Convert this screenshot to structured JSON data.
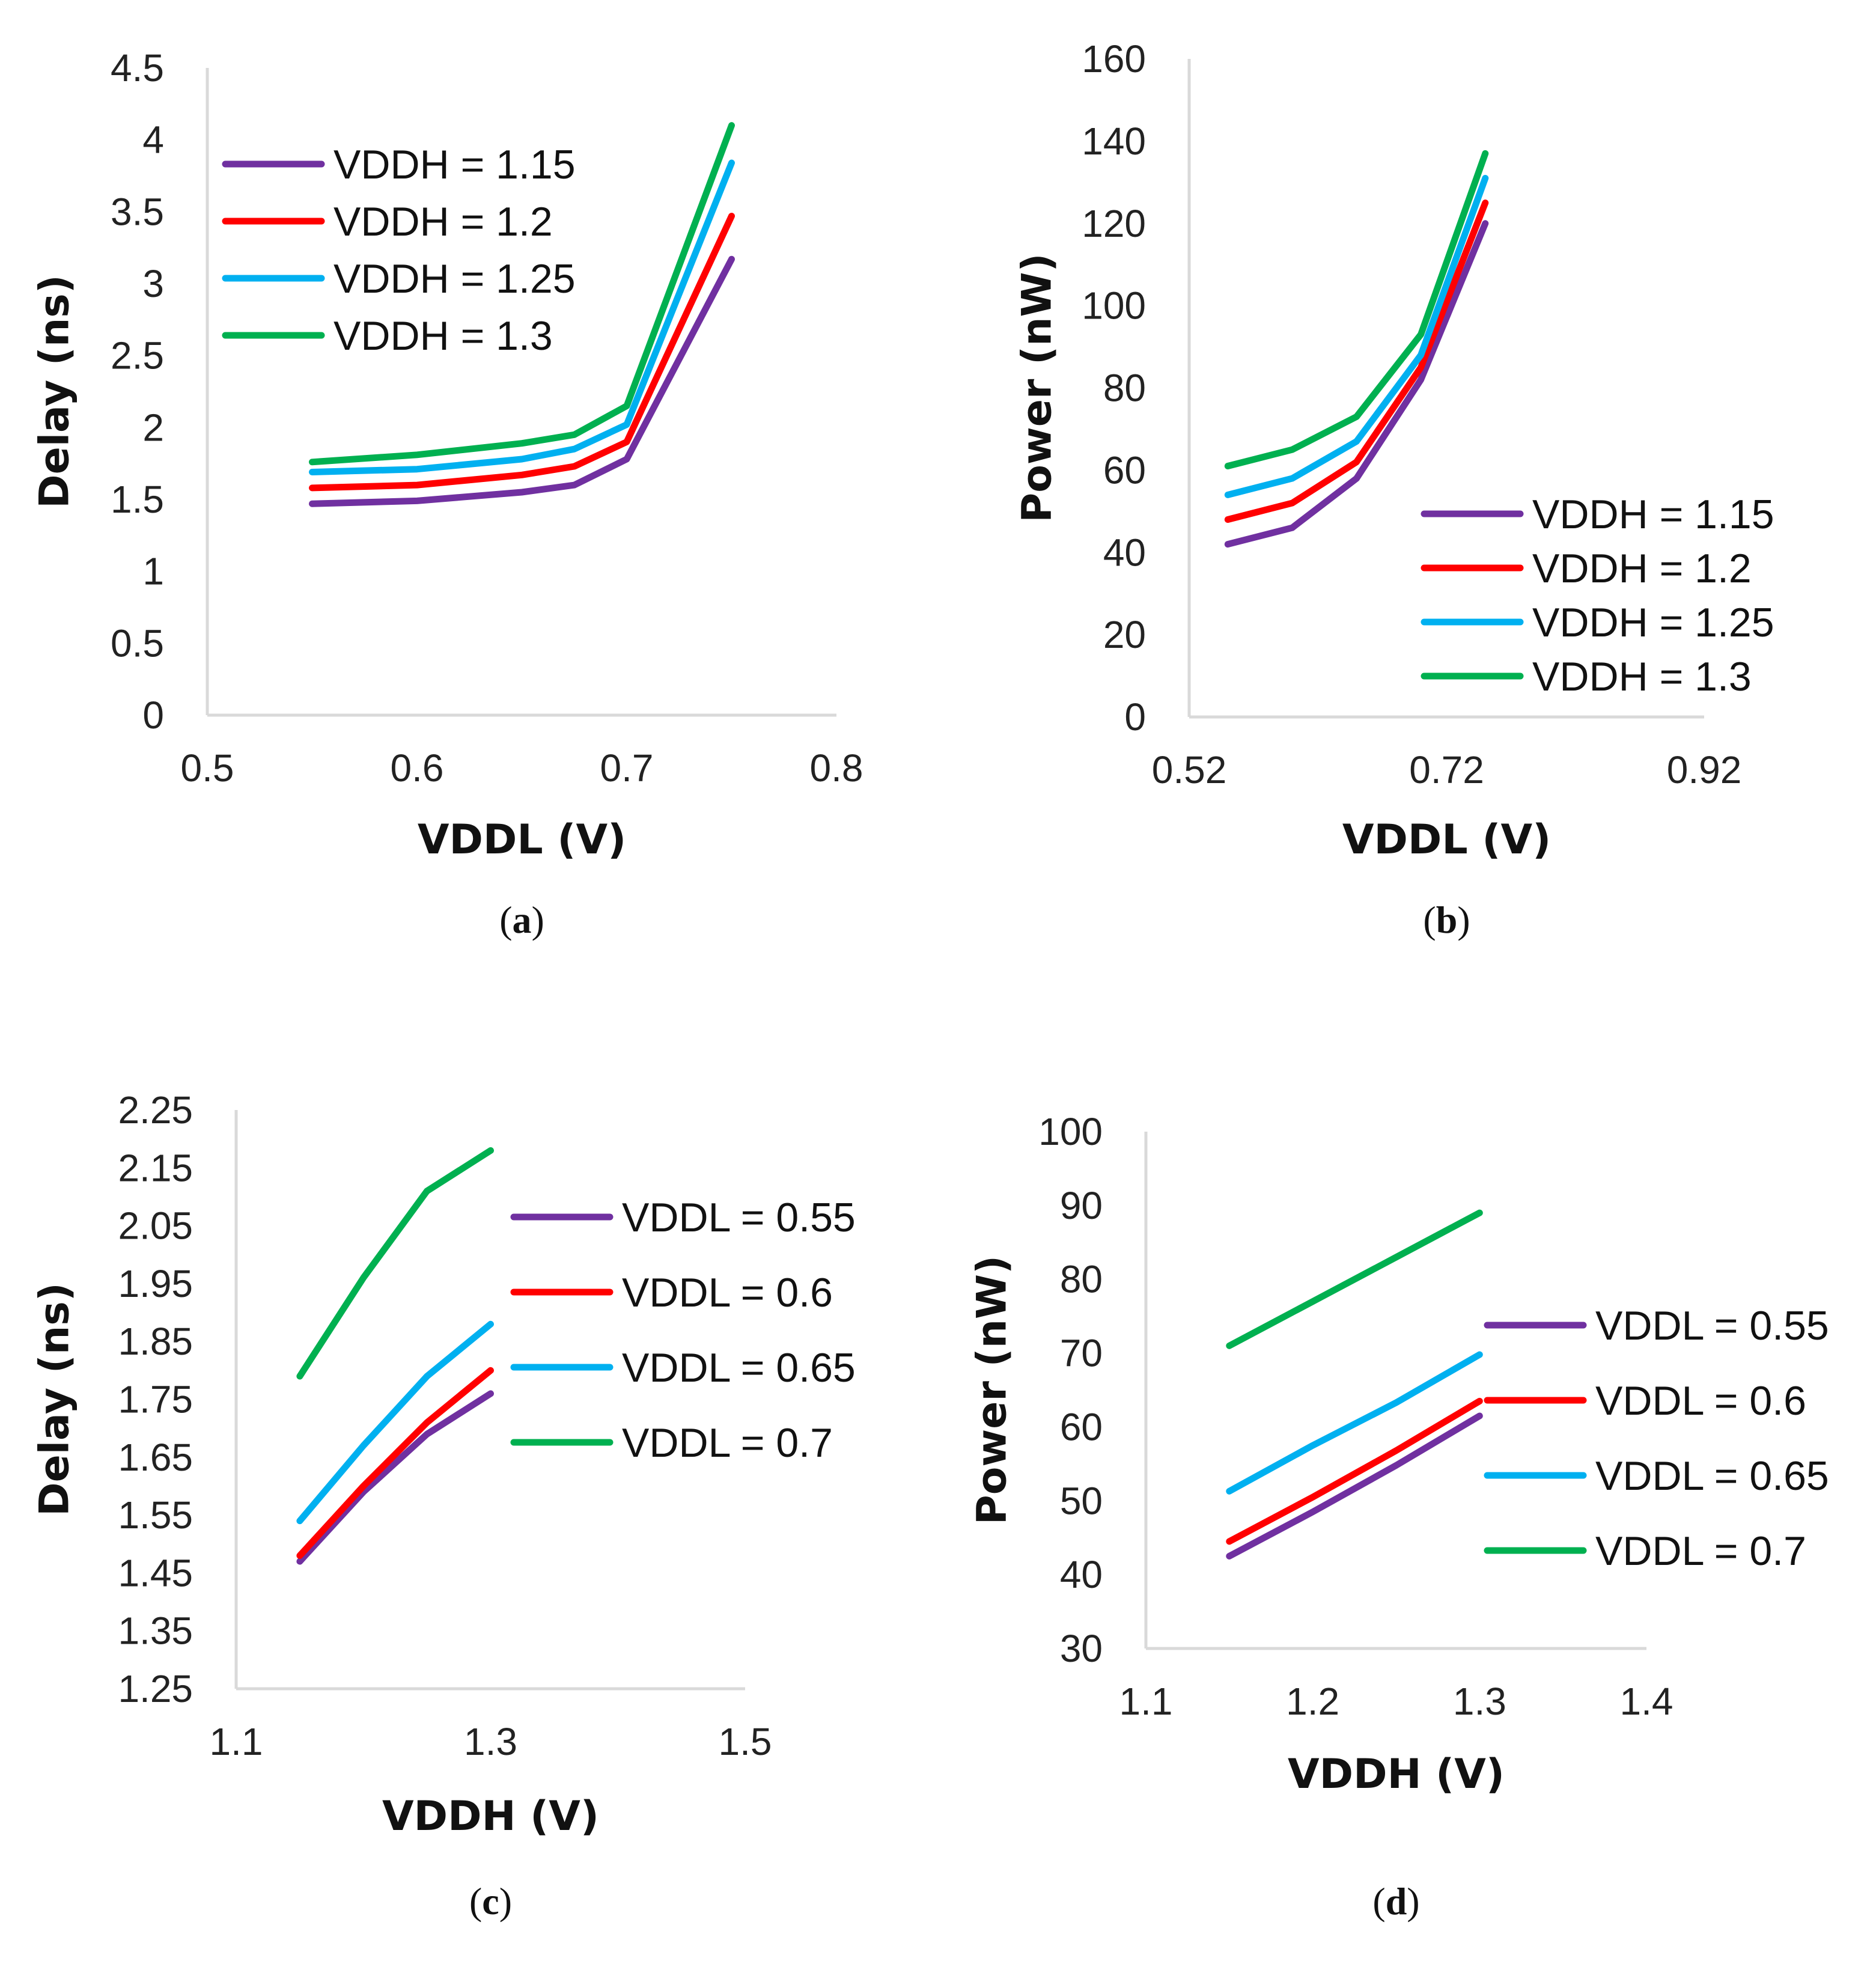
{
  "colors": {
    "series": [
      "#7030A0",
      "#FF0000",
      "#00B0F0",
      "#00B050"
    ],
    "axis": "#D9D9D9"
  },
  "chart_data": [
    {
      "id": "a",
      "type": "line",
      "panel_label": "a",
      "xlabel": "VDDL (V)",
      "ylabel": "Delay (ns)",
      "xlim": [
        0.5,
        0.8
      ],
      "ylim": [
        0,
        4.5
      ],
      "xticks": [
        "0.5",
        "0.6",
        "0.7",
        "0.8"
      ],
      "xtick_values": [
        0.5,
        0.6,
        0.7,
        0.8
      ],
      "yticks": [
        "0",
        "0.5",
        "1",
        "1.5",
        "2",
        "2.5",
        "3",
        "3.5",
        "4",
        "4.5"
      ],
      "ytick_values": [
        0,
        0.5,
        1,
        1.5,
        2,
        2.5,
        3,
        3.5,
        4,
        4.5
      ],
      "legend_position": "top-left",
      "x": [
        0.55,
        0.6,
        0.65,
        0.675,
        0.7,
        0.75
      ],
      "series": [
        {
          "name": "VDDH = 1.15",
          "values": [
            1.47,
            1.49,
            1.55,
            1.6,
            1.78,
            3.17
          ]
        },
        {
          "name": "VDDH = 1.2",
          "values": [
            1.58,
            1.6,
            1.67,
            1.73,
            1.9,
            3.47
          ]
        },
        {
          "name": "VDDH = 1.25",
          "values": [
            1.69,
            1.71,
            1.78,
            1.85,
            2.02,
            3.84
          ]
        },
        {
          "name": "VDDH = 1.3",
          "values": [
            1.76,
            1.81,
            1.89,
            1.95,
            2.15,
            4.1
          ]
        }
      ]
    },
    {
      "id": "b",
      "type": "line",
      "panel_label": "b",
      "xlabel": "VDDL (V)",
      "ylabel": "Power (nW)",
      "xlim": [
        0.52,
        0.92
      ],
      "ylim": [
        0,
        160
      ],
      "xticks": [
        "0.52",
        "0.72",
        "0.92"
      ],
      "xtick_values": [
        0.52,
        0.72,
        0.92
      ],
      "yticks": [
        "0",
        "20",
        "40",
        "60",
        "80",
        "100",
        "120",
        "140",
        "160"
      ],
      "ytick_values": [
        0,
        20,
        40,
        60,
        80,
        100,
        120,
        140,
        160
      ],
      "legend_position": "bottom-right",
      "x": [
        0.55,
        0.6,
        0.65,
        0.7,
        0.75
      ],
      "series": [
        {
          "name": "VDDH = 1.15",
          "values": [
            42,
            46,
            58,
            82,
            120
          ]
        },
        {
          "name": "VDDH = 1.2",
          "values": [
            48,
            52,
            62,
            85,
            125
          ]
        },
        {
          "name": "VDDH = 1.25",
          "values": [
            54,
            58,
            67,
            88,
            131
          ]
        },
        {
          "name": "VDDH = 1.3",
          "values": [
            61,
            65,
            73,
            93,
            137
          ]
        }
      ]
    },
    {
      "id": "c",
      "type": "line",
      "panel_label": "c",
      "xlabel": "VDDH (V)",
      "ylabel": "Delay (ns)",
      "xlim": [
        1.1,
        1.5
      ],
      "ylim": [
        1.25,
        2.25
      ],
      "xticks": [
        "1.1",
        "1.3",
        "1.5"
      ],
      "xtick_values": [
        1.1,
        1.3,
        1.5
      ],
      "yticks": [
        "1.25",
        "1.35",
        "1.45",
        "1.55",
        "1.65",
        "1.75",
        "1.85",
        "1.95",
        "2.05",
        "2.15",
        "2.25"
      ],
      "ytick_values": [
        1.25,
        1.35,
        1.45,
        1.55,
        1.65,
        1.75,
        1.85,
        1.95,
        2.05,
        2.15,
        2.25
      ],
      "legend_position": "top-right",
      "x": [
        1.15,
        1.2,
        1.25,
        1.3
      ],
      "series": [
        {
          "name": "VDDL = 0.55",
          "values": [
            1.47,
            1.59,
            1.69,
            1.76
          ]
        },
        {
          "name": "VDDL = 0.6",
          "values": [
            1.48,
            1.6,
            1.71,
            1.8
          ]
        },
        {
          "name": "VDDL = 0.65",
          "values": [
            1.54,
            1.67,
            1.79,
            1.88
          ]
        },
        {
          "name": "VDDL = 0.7",
          "values": [
            1.79,
            1.96,
            2.11,
            2.18
          ]
        }
      ]
    },
    {
      "id": "d",
      "type": "line",
      "panel_label": "d",
      "xlabel": "VDDH (V)",
      "ylabel": "Power (nW)",
      "xlim": [
        1.1,
        1.4
      ],
      "ylim": [
        30,
        100
      ],
      "xticks": [
        "1.1",
        "1.2",
        "1.3",
        "1.4"
      ],
      "xtick_values": [
        1.1,
        1.2,
        1.3,
        1.4
      ],
      "yticks": [
        "30",
        "40",
        "50",
        "60",
        "70",
        "80",
        "90",
        "100"
      ],
      "ytick_values": [
        30,
        40,
        50,
        60,
        70,
        80,
        90,
        100
      ],
      "legend_position": "right",
      "x": [
        1.15,
        1.2,
        1.25,
        1.3
      ],
      "series": [
        {
          "name": "VDDL = 0.55",
          "values": [
            42.5,
            48.5,
            54.8,
            61.5
          ]
        },
        {
          "name": "VDDL = 0.6",
          "values": [
            44.5,
            50.5,
            56.8,
            63.5
          ]
        },
        {
          "name": "VDDL = 0.65",
          "values": [
            51.3,
            57.5,
            63.3,
            69.8
          ]
        },
        {
          "name": "VDDL = 0.7",
          "values": [
            71,
            77,
            83,
            89
          ]
        }
      ]
    }
  ]
}
